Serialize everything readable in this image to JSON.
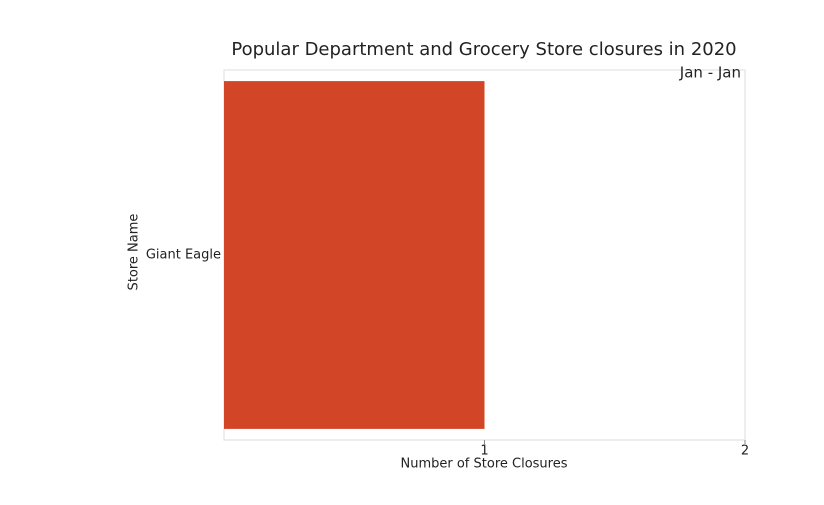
{
  "chart_data": {
    "type": "barh",
    "title": "Popular Department and Grocery Store closures in 2020",
    "annotation": "Jan - Jan",
    "x_label": "Number of Store Closures",
    "y_label": "Store Name",
    "categories": [
      "Giant Eagle"
    ],
    "values": [
      1
    ],
    "color": "#d24526",
    "xlim": [
      0,
      2
    ],
    "xticks": [
      1,
      2
    ]
  }
}
